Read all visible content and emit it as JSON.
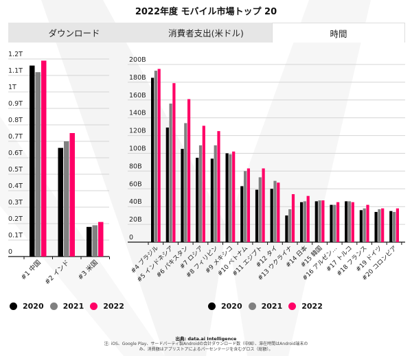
{
  "title": "2022年度 モバイル市場トップ 20",
  "tabs": [
    {
      "label": "ダウンロード",
      "active": false
    },
    {
      "label": "消費者支出(米ドル)",
      "active": false
    },
    {
      "label": "時間",
      "active": true
    }
  ],
  "colors": {
    "2020": "#000000",
    "2021": "#808080",
    "2022": "#ff0066"
  },
  "legend": [
    "2020",
    "2021",
    "2022"
  ],
  "chart_data": [
    {
      "type": "bar",
      "title": "",
      "ylim": [
        0,
        1.2
      ],
      "yticks": [
        "0",
        "0.1T",
        "0.2T",
        "0.3T",
        "0.4T",
        "0.5T",
        "0.6T",
        "0.7T",
        "0.8T",
        "0.9T",
        "1T",
        "1.1T",
        "1.2T"
      ],
      "grid": true,
      "legend_position": "bottom",
      "unit": "T",
      "categories": [
        "#1 中国",
        "#2 インド",
        "#3 米国"
      ],
      "series": [
        {
          "name": "2020",
          "values": [
            1.16,
            0.66,
            0.18
          ]
        },
        {
          "name": "2021",
          "values": [
            1.12,
            0.7,
            0.19
          ]
        },
        {
          "name": "2022",
          "values": [
            1.19,
            0.75,
            0.21
          ]
        }
      ]
    },
    {
      "type": "bar",
      "title": "",
      "ylim": [
        0,
        200
      ],
      "yticks": [
        "0",
        "20B",
        "40B",
        "60B",
        "80B",
        "100B",
        "120B",
        "140B",
        "160B",
        "180B",
        "200B"
      ],
      "grid": true,
      "legend_position": "bottom",
      "unit": "B",
      "categories": [
        "#4 ブラジル",
        "#5 インドネシア",
        "#6 パキスタン",
        "#7 ロシア",
        "#8 フィリピン",
        "#9 メキシコ",
        "#10 ベトナム",
        "#11 エジプト",
        "#12 タイ",
        "#13 ウクライナ",
        "#14 日本",
        "#15 韓国",
        "#16 アルゼン…",
        "#17 トルコ",
        "#18 フランス",
        "#19 ドイツ",
        "#20 コロンビア"
      ],
      "series": [
        {
          "name": "2020",
          "values": [
            185,
            129,
            105,
            95,
            94,
            100,
            63,
            59,
            60,
            30,
            45,
            46,
            42,
            46,
            36,
            34,
            35
          ]
        },
        {
          "name": "2021",
          "values": [
            193,
            156,
            134,
            109,
            109,
            99,
            80,
            73,
            69,
            37,
            46,
            47,
            42,
            46,
            38,
            37,
            34
          ]
        },
        {
          "name": "2022",
          "values": [
            195,
            179,
            161,
            131,
            125,
            102,
            83,
            83,
            67,
            54,
            52,
            47,
            45,
            45,
            42,
            38,
            38
          ]
        }
      ]
    }
  ],
  "footer": {
    "source": "出典: data.ai Intelligence",
    "note_line1": "注: iOS、Google Play、サードパーティ製Androidの合計ダウンロード数（中国）、滞在時間はAndroid端末の",
    "note_line2": "み、消費額はアプリストアによるパーセンテージを含むグロス（総額）。"
  }
}
